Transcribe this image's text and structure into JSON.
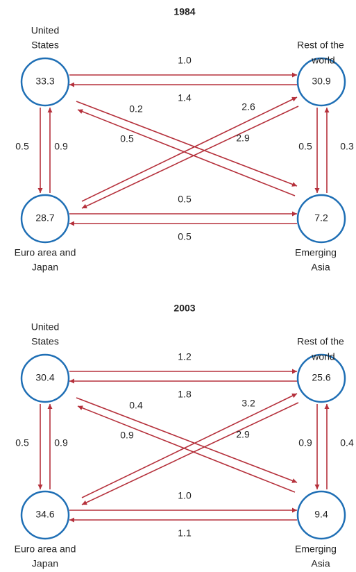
{
  "panels": [
    {
      "title": "1984",
      "nodes": [
        {
          "label": [
            "United",
            "States"
          ],
          "value": "33.3"
        },
        {
          "label": [
            "Rest of the",
            "world"
          ],
          "value": "30.9"
        },
        {
          "label": [
            "Euro area and",
            "Japan"
          ],
          "value": "28.7"
        },
        {
          "label": [
            "Emerging",
            "Asia"
          ],
          "value": "7.2"
        }
      ],
      "flows": [
        "1.0",
        "1.4",
        "0.2",
        "0.5",
        "2.6",
        "2.9",
        "0.5",
        "0.9",
        "0.5",
        "0.3",
        "0.5",
        "0.5"
      ]
    },
    {
      "title": "2003",
      "nodes": [
        {
          "label": [
            "United",
            "States"
          ],
          "value": "30.4"
        },
        {
          "label": [
            "Rest of the",
            "world"
          ],
          "value": "25.6"
        },
        {
          "label": [
            "Euro area and",
            "Japan"
          ],
          "value": "34.6"
        },
        {
          "label": [
            "Emerging",
            "Asia"
          ],
          "value": "9.4"
        }
      ],
      "flows": [
        "1.2",
        "1.8",
        "0.4",
        "0.9",
        "3.2",
        "2.9",
        "0.5",
        "0.9",
        "0.9",
        "0.4",
        "1.0",
        "1.1"
      ]
    }
  ]
}
